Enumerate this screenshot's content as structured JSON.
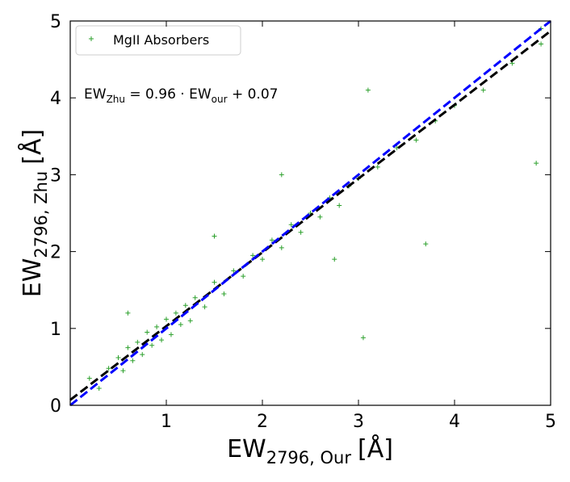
{
  "chart_data": {
    "type": "scatter",
    "xlabel": {
      "main": "EW",
      "sub": "2796, Our",
      "unit": "[Å]"
    },
    "ylabel": {
      "main": "EW",
      "sub": "2796, Zhu",
      "unit": "[Å]"
    },
    "annotation": [
      {
        "text": "EW",
        "sub": false
      },
      {
        "text": "Zhu",
        "sub": true
      },
      {
        "text": " = 0.96 · EW",
        "sub": false
      },
      {
        "text": "our",
        "sub": true
      },
      {
        "text": " + 0.07",
        "sub": false
      }
    ],
    "legend_position": "upper left",
    "xlim": [
      0,
      5
    ],
    "ylim": [
      0,
      5
    ],
    "xticks": [
      1,
      2,
      3,
      4,
      5
    ],
    "yticks": [
      0,
      1,
      2,
      3,
      4,
      5
    ],
    "series": [
      {
        "name": "MgII Absorbers",
        "color": "#2ca02c",
        "marker": "+",
        "x": [
          0.2,
          0.3,
          0.4,
          0.5,
          0.55,
          0.6,
          0.65,
          0.7,
          0.75,
          0.8,
          0.85,
          0.9,
          0.95,
          1.0,
          1.05,
          1.1,
          1.15,
          1.2,
          1.25,
          1.3,
          1.4,
          1.5,
          1.6,
          1.7,
          1.8,
          1.9,
          2.0,
          2.1,
          2.2,
          2.3,
          2.4,
          2.5,
          2.6,
          2.7,
          2.8,
          2.9,
          3.0,
          3.2,
          3.4,
          3.6,
          3.8,
          4.0,
          4.3,
          4.6,
          4.9,
          2.75,
          3.05,
          3.1,
          3.7,
          4.85,
          2.2,
          1.5,
          0.6,
          4.9
        ],
        "values": [
          0.35,
          0.22,
          0.48,
          0.62,
          0.45,
          0.75,
          0.58,
          0.82,
          0.66,
          0.95,
          0.78,
          1.02,
          0.85,
          1.12,
          0.92,
          1.2,
          1.05,
          1.3,
          1.1,
          1.4,
          1.28,
          1.6,
          1.45,
          1.75,
          1.68,
          1.95,
          1.9,
          2.15,
          2.05,
          2.35,
          2.25,
          2.5,
          2.45,
          2.7,
          2.6,
          2.85,
          2.95,
          3.1,
          3.35,
          3.45,
          3.7,
          3.9,
          4.1,
          4.45,
          4.7,
          1.9,
          0.88,
          4.1,
          2.1,
          3.15,
          3.0,
          2.2,
          1.2,
          4.9
        ]
      }
    ],
    "lines": [
      {
        "color": "#000000",
        "dash": true,
        "x": [
          0,
          5
        ],
        "values": [
          0.07,
          4.87
        ]
      },
      {
        "color": "#0000ff",
        "dash": true,
        "x": [
          0,
          5
        ],
        "values": [
          0,
          5
        ]
      }
    ]
  }
}
